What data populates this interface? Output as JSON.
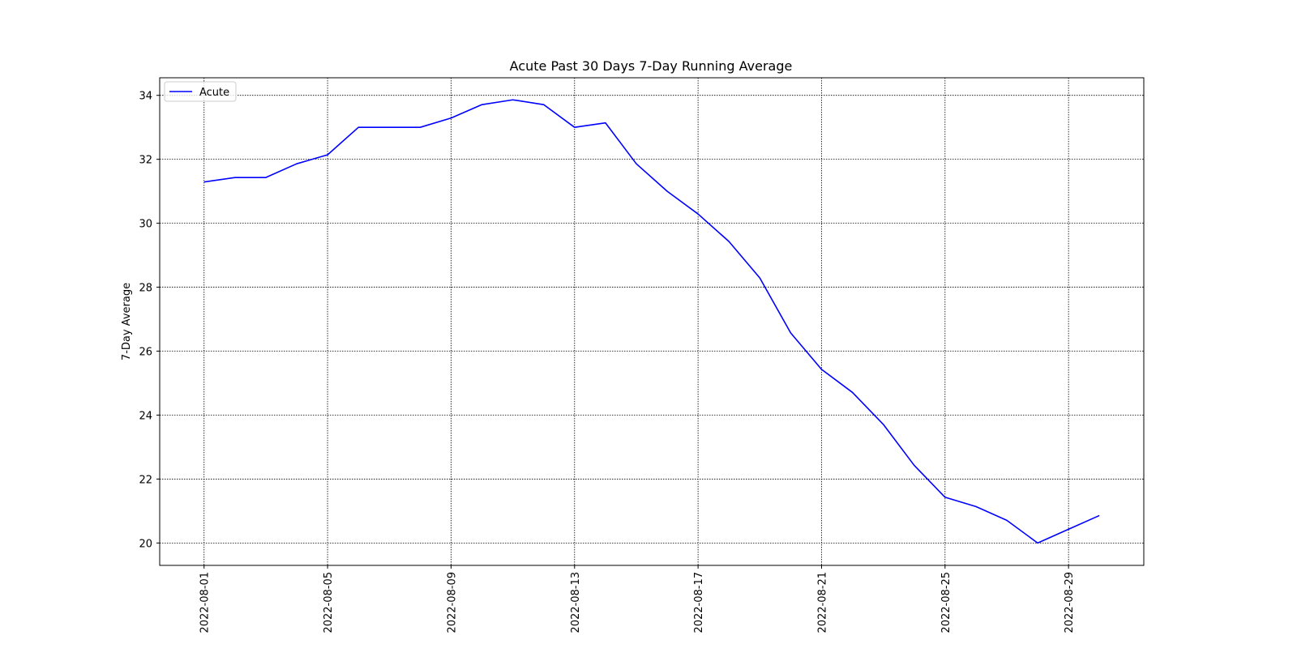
{
  "chart_data": {
    "type": "line",
    "title": "Acute Past 30 Days 7-Day Running Average",
    "xlabel": "",
    "ylabel": "7-Day Average",
    "x": [
      "2022-08-01",
      "2022-08-02",
      "2022-08-03",
      "2022-08-04",
      "2022-08-05",
      "2022-08-06",
      "2022-08-07",
      "2022-08-08",
      "2022-08-09",
      "2022-08-10",
      "2022-08-11",
      "2022-08-12",
      "2022-08-13",
      "2022-08-14",
      "2022-08-15",
      "2022-08-16",
      "2022-08-17",
      "2022-08-18",
      "2022-08-19",
      "2022-08-20",
      "2022-08-21",
      "2022-08-22",
      "2022-08-23",
      "2022-08-24",
      "2022-08-25",
      "2022-08-26",
      "2022-08-27",
      "2022-08-28",
      "2022-08-29",
      "2022-08-30"
    ],
    "series": [
      {
        "name": "Acute",
        "color": "#0000ff",
        "values": [
          31.29,
          31.43,
          31.43,
          31.86,
          32.14,
          33.0,
          33.0,
          33.0,
          33.29,
          33.71,
          33.86,
          33.71,
          33.0,
          33.14,
          31.86,
          31.0,
          30.29,
          29.43,
          28.29,
          26.57,
          25.43,
          24.71,
          23.71,
          22.43,
          21.43,
          21.14,
          20.71,
          20.0,
          20.43,
          20.86
        ]
      }
    ],
    "xticks": [
      "2022-08-01",
      "2022-08-05",
      "2022-08-09",
      "2022-08-13",
      "2022-08-17",
      "2022-08-21",
      "2022-08-25",
      "2022-08-29"
    ],
    "yticks": [
      20,
      22,
      24,
      26,
      28,
      30,
      32,
      34
    ],
    "ylim": [
      19.3,
      34.55
    ],
    "xlim": [
      "2022-07-30T13:30",
      "2022-08-31T10:30"
    ],
    "grid": true,
    "legend_position": "top-left"
  }
}
